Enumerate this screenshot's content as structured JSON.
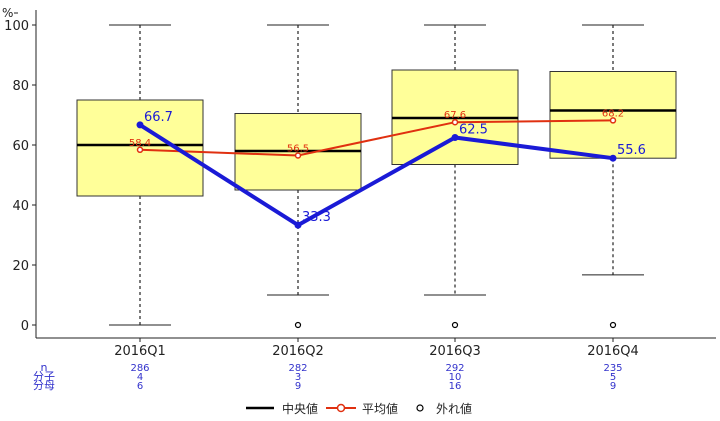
{
  "chart_data": {
    "type": "box",
    "ylabel": "%",
    "ylim": [
      0,
      100
    ],
    "yticks": [
      0,
      20,
      40,
      60,
      80,
      100
    ],
    "categories": [
      "2016Q1",
      "2016Q2",
      "2016Q3",
      "2016Q4"
    ],
    "boxes": [
      {
        "category": "2016Q1",
        "whisker_low": 0,
        "q1": 43,
        "median": 60,
        "q3": 75,
        "whisker_high": 100,
        "outliers": []
      },
      {
        "category": "2016Q2",
        "whisker_low": 10,
        "q1": 45,
        "median": 58,
        "q3": 70.5,
        "whisker_high": 100,
        "outliers": [
          0
        ]
      },
      {
        "category": "2016Q3",
        "whisker_low": 10,
        "q1": 53.5,
        "median": 69,
        "q3": 85,
        "whisker_high": 100,
        "outliers": [
          0
        ]
      },
      {
        "category": "2016Q4",
        "whisker_low": 16.7,
        "q1": 55.6,
        "median": 71.5,
        "q3": 84.5,
        "whisker_high": 100,
        "outliers": [
          0
        ]
      }
    ],
    "mean_series": {
      "values": [
        58.4,
        56.5,
        67.6,
        68.2
      ],
      "labels": [
        "58.4",
        "56.5",
        "67.6",
        "68.2"
      ],
      "color": "#e03010"
    },
    "value_series": {
      "values": [
        66.7,
        33.3,
        62.5,
        55.6
      ],
      "labels": [
        "66.7",
        "33.3",
        "62.5",
        "55.6"
      ],
      "color": "#1a1ad6"
    },
    "table": {
      "row_labels": [
        "n",
        "分子",
        "分母"
      ],
      "rows": [
        [
          "286",
          "282",
          "292",
          "235"
        ],
        [
          "4",
          "3",
          "10",
          "5"
        ],
        [
          "6",
          "9",
          "16",
          "9"
        ]
      ]
    },
    "legend": {
      "position": "bottom",
      "items": [
        {
          "label": "中央値",
          "kind": "median"
        },
        {
          "label": "平均値",
          "kind": "mean",
          "color": "#e03010"
        },
        {
          "label": "外れ値",
          "kind": "outlier"
        }
      ]
    },
    "colors": {
      "box_fill": "#ffff99",
      "box_stroke": "#333333"
    }
  }
}
